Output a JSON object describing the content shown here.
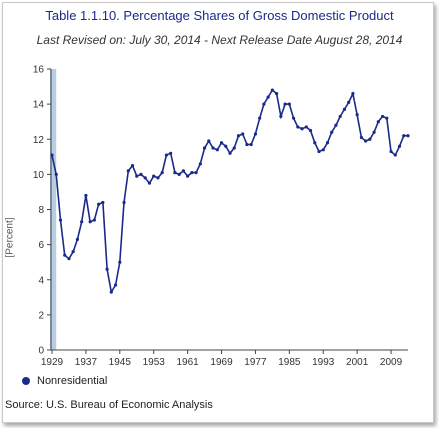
{
  "chart_data": {
    "type": "line",
    "title": "Table 1.1.10. Percentage Shares of Gross Domestic Product",
    "subtitle": "Last Revised on: July 30, 2014 - Next Release Date August 28, 2014",
    "xlabel": "",
    "ylabel": "[Percent]",
    "xlim": [
      1929,
      2013
    ],
    "ylim": [
      0,
      16
    ],
    "x_ticks": [
      "1929",
      "1937",
      "1945",
      "1953",
      "1961",
      "1969",
      "1977",
      "1985",
      "1993",
      "2001",
      "2009"
    ],
    "y_ticks": [
      "0",
      "2",
      "4",
      "6",
      "8",
      "10",
      "12",
      "14",
      "16"
    ],
    "grid": false,
    "legend_position": "bottom-left",
    "series": [
      {
        "name": "Nonresidential",
        "color": "#1a2a8a",
        "x": [
          1929,
          1930,
          1931,
          1932,
          1933,
          1934,
          1935,
          1936,
          1937,
          1938,
          1939,
          1940,
          1941,
          1942,
          1943,
          1944,
          1945,
          1946,
          1947,
          1948,
          1949,
          1950,
          1951,
          1952,
          1953,
          1954,
          1955,
          1956,
          1957,
          1958,
          1959,
          1960,
          1961,
          1962,
          1963,
          1964,
          1965,
          1966,
          1967,
          1968,
          1969,
          1970,
          1971,
          1972,
          1973,
          1974,
          1975,
          1976,
          1977,
          1978,
          1979,
          1980,
          1981,
          1982,
          1983,
          1984,
          1985,
          1986,
          1987,
          1988,
          1989,
          1990,
          1991,
          1992,
          1993,
          1994,
          1995,
          1996,
          1997,
          1998,
          1999,
          2000,
          2001,
          2002,
          2003,
          2004,
          2005,
          2006,
          2007,
          2008,
          2009,
          2010,
          2011,
          2012,
          2013
        ],
        "values": [
          11.1,
          10.0,
          7.4,
          5.4,
          5.2,
          5.6,
          6.3,
          7.3,
          8.8,
          7.3,
          7.4,
          8.3,
          8.4,
          4.6,
          3.3,
          3.7,
          5.0,
          8.4,
          10.2,
          10.5,
          9.9,
          10.0,
          9.8,
          9.5,
          9.9,
          9.8,
          10.1,
          11.1,
          11.2,
          10.1,
          10.0,
          10.2,
          9.9,
          10.1,
          10.1,
          10.6,
          11.5,
          11.9,
          11.5,
          11.4,
          11.8,
          11.6,
          11.2,
          11.5,
          12.2,
          12.3,
          11.7,
          11.7,
          12.3,
          13.2,
          14.0,
          14.4,
          14.8,
          14.6,
          13.3,
          14.0,
          14.0,
          13.2,
          12.7,
          12.6,
          12.7,
          12.5,
          11.8,
          11.3,
          11.4,
          11.8,
          12.4,
          12.8,
          13.3,
          13.7,
          14.1,
          14.6,
          13.4,
          12.1,
          11.9,
          12.0,
          12.4,
          13.0,
          13.3,
          13.2,
          11.3,
          11.1,
          11.6,
          12.2,
          12.2
        ]
      }
    ],
    "shaded_region": {
      "x": [
        1929,
        1930
      ],
      "color": "#b8cde0"
    }
  },
  "legend": {
    "label": "Nonresidential",
    "color": "#1a2a8a"
  },
  "source": "Source: U.S. Bureau of Economic Analysis"
}
